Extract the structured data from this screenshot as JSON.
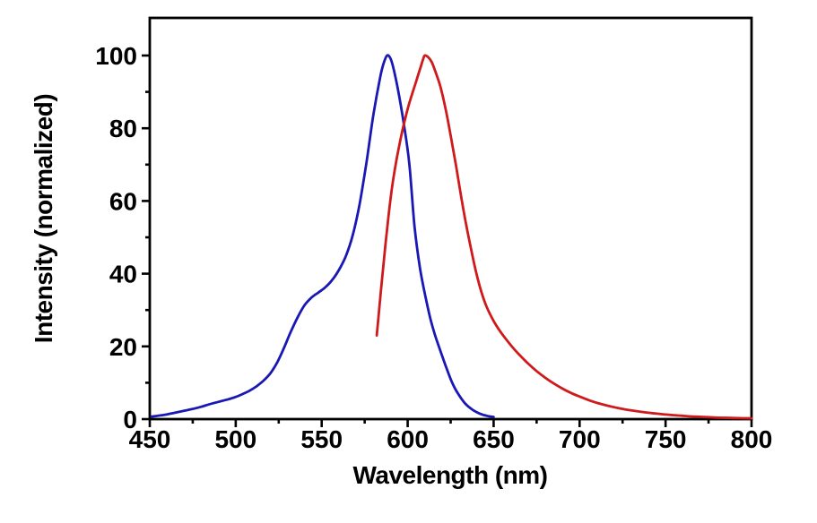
{
  "figure": {
    "background_color": "#ffffff",
    "axis_color": "#000000"
  },
  "chart_data": {
    "type": "line",
    "xlabel": "Wavelength (nm)",
    "ylabel": "Intensity (normalized)",
    "xlim": [
      450,
      800
    ],
    "ylim": [
      0,
      110
    ],
    "x_major_ticks": [
      450,
      500,
      550,
      600,
      650,
      700,
      750,
      800
    ],
    "x_minor_ticks": [
      475,
      525,
      575,
      625,
      675,
      725,
      775
    ],
    "y_major_ticks": [
      0,
      20,
      40,
      60,
      80,
      100
    ],
    "y_minor_ticks": [
      10,
      30,
      50,
      70,
      90
    ],
    "grid": false,
    "legend": "none",
    "frame": "full-box",
    "series": [
      {
        "name": "blue-curve",
        "color": "#1a18b4",
        "peak_nm": 588,
        "peak_intensity": 100,
        "points": [
          [
            451,
            0.7
          ],
          [
            456,
            1.0
          ],
          [
            460,
            1.3
          ],
          [
            464,
            1.7
          ],
          [
            468,
            2.1
          ],
          [
            472,
            2.5
          ],
          [
            476,
            2.9
          ],
          [
            480,
            3.4
          ],
          [
            484,
            4.0
          ],
          [
            488,
            4.5
          ],
          [
            492,
            5.0
          ],
          [
            496,
            5.5
          ],
          [
            500,
            6.1
          ],
          [
            504,
            6.9
          ],
          [
            508,
            7.8
          ],
          [
            512,
            9.0
          ],
          [
            516,
            10.5
          ],
          [
            520,
            12.5
          ],
          [
            524,
            15.5
          ],
          [
            528,
            19.5
          ],
          [
            532,
            24.0
          ],
          [
            536,
            28.0
          ],
          [
            540,
            31.3
          ],
          [
            544,
            33.4
          ],
          [
            548,
            34.8
          ],
          [
            552,
            36.2
          ],
          [
            556,
            38.2
          ],
          [
            560,
            41.0
          ],
          [
            564,
            44.8
          ],
          [
            568,
            50.5
          ],
          [
            572,
            59.0
          ],
          [
            576,
            70.5
          ],
          [
            580,
            83.5
          ],
          [
            584,
            94.0
          ],
          [
            586,
            97.8
          ],
          [
            588,
            100.0
          ],
          [
            590,
            99.2
          ],
          [
            592,
            96.0
          ],
          [
            595,
            89.0
          ],
          [
            598,
            80.5
          ],
          [
            601,
            70.0
          ],
          [
            604,
            53.0
          ],
          [
            607,
            42.0
          ],
          [
            610,
            34.5
          ],
          [
            613,
            28.0
          ],
          [
            616,
            23.0
          ],
          [
            619,
            18.8
          ],
          [
            622,
            14.8
          ],
          [
            625,
            11.0
          ],
          [
            628,
            8.0
          ],
          [
            631,
            5.8
          ],
          [
            634,
            4.0
          ],
          [
            638,
            2.5
          ],
          [
            642,
            1.5
          ],
          [
            646,
            0.9
          ],
          [
            650,
            0.6
          ]
        ]
      },
      {
        "name": "red-curve",
        "color": "#cf1a1c",
        "peak_nm": 610,
        "peak_intensity": 100,
        "points": [
          [
            582,
            23.0
          ],
          [
            583,
            28.0
          ],
          [
            585,
            38.0
          ],
          [
            587,
            47.5
          ],
          [
            589,
            56.5
          ],
          [
            591,
            64.0
          ],
          [
            593,
            70.0
          ],
          [
            595,
            75.0
          ],
          [
            597,
            79.5
          ],
          [
            599,
            83.5
          ],
          [
            601,
            87.0
          ],
          [
            603,
            90.0
          ],
          [
            605,
            93.0
          ],
          [
            607,
            96.0
          ],
          [
            609,
            99.0
          ],
          [
            610,
            100.0
          ],
          [
            612,
            99.5
          ],
          [
            614,
            98.2
          ],
          [
            616,
            95.8
          ],
          [
            619,
            91.5
          ],
          [
            622,
            85.5
          ],
          [
            625,
            78.0
          ],
          [
            628,
            70.0
          ],
          [
            631,
            61.5
          ],
          [
            634,
            53.5
          ],
          [
            637,
            46.5
          ],
          [
            640,
            40.0
          ],
          [
            643,
            34.8
          ],
          [
            646,
            30.8
          ],
          [
            650,
            27.0
          ],
          [
            654,
            24.0
          ],
          [
            658,
            21.5
          ],
          [
            662,
            19.2
          ],
          [
            666,
            17.2
          ],
          [
            670,
            15.3
          ],
          [
            675,
            13.2
          ],
          [
            680,
            11.4
          ],
          [
            685,
            9.8
          ],
          [
            690,
            8.4
          ],
          [
            695,
            7.2
          ],
          [
            700,
            6.2
          ],
          [
            706,
            5.1
          ],
          [
            712,
            4.2
          ],
          [
            718,
            3.5
          ],
          [
            724,
            2.9
          ],
          [
            730,
            2.4
          ],
          [
            736,
            2.0
          ],
          [
            742,
            1.65
          ],
          [
            748,
            1.35
          ],
          [
            754,
            1.1
          ],
          [
            760,
            0.9
          ],
          [
            766,
            0.72
          ],
          [
            772,
            0.58
          ],
          [
            778,
            0.46
          ],
          [
            784,
            0.37
          ],
          [
            790,
            0.3
          ],
          [
            795,
            0.25
          ],
          [
            800,
            0.22
          ]
        ]
      }
    ]
  }
}
